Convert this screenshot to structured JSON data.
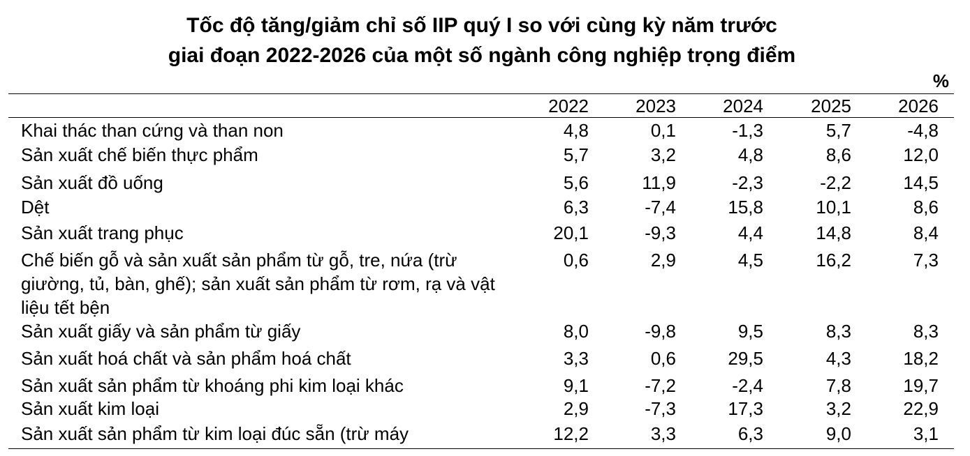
{
  "title": {
    "line1": "Tốc độ tăng/giảm chỉ số IIP quý I so với cùng kỳ năm trước",
    "line2": "giai đoạn 2022-2026 của một số ngành công nghiệp trọng điểm"
  },
  "unit": "%",
  "table": {
    "columns": [
      "2022",
      "2023",
      "2024",
      "2025",
      "2026"
    ],
    "rows": [
      {
        "label": "Khai thác than cứng và than non",
        "values": [
          "4,8",
          "0,1",
          "-1,3",
          "5,7",
          "-4,8"
        ]
      },
      {
        "label": "Sản xuất chế biến thực phẩm",
        "values": [
          "5,7",
          "3,2",
          "4,8",
          "8,6",
          "12,0"
        ]
      },
      {
        "label": "Sản xuất đồ uống",
        "values": [
          "5,6",
          "11,9",
          "-2,3",
          "-2,2",
          "14,5"
        ]
      },
      {
        "label": "Dệt",
        "values": [
          "6,3",
          "-7,4",
          "15,8",
          "10,1",
          "8,6"
        ]
      },
      {
        "label": "Sản xuất trang phục",
        "values": [
          "20,1",
          "-9,3",
          "4,4",
          "14,8",
          "8,4"
        ]
      },
      {
        "label": "Chế biến gỗ và sản xuất sản phẩm từ gỗ, tre, nứa (trừ giường, tủ, bàn, ghế); sản xuất sản phẩm từ rơm, rạ và vật liệu tết bện",
        "values": [
          "0,6",
          "2,9",
          "4,5",
          "16,2",
          "7,3"
        ]
      },
      {
        "label": "Sản xuất giấy và sản phẩm từ giấy",
        "values": [
          "8,0",
          "-9,8",
          "9,5",
          "8,3",
          "8,3"
        ]
      },
      {
        "label": "Sản xuất hoá chất và sản phẩm hoá chất",
        "values": [
          "3,3",
          "0,6",
          "29,5",
          "4,3",
          "18,2"
        ]
      },
      {
        "label": "Sản xuất sản phẩm từ khoáng phi kim loại khác",
        "values": [
          "9,1",
          "-7,2",
          "-2,4",
          "7,8",
          "19,7"
        ]
      },
      {
        "label": "Sản xuất kim loại",
        "values": [
          "2,9",
          "-7,3",
          "17,3",
          "3,2",
          "22,9"
        ]
      },
      {
        "label": "Sản xuất sản phẩm từ kim loại đúc sẵn (trừ máy",
        "values": [
          "12,2",
          "3,3",
          "6,3",
          "9,0",
          "3,1"
        ]
      }
    ]
  }
}
